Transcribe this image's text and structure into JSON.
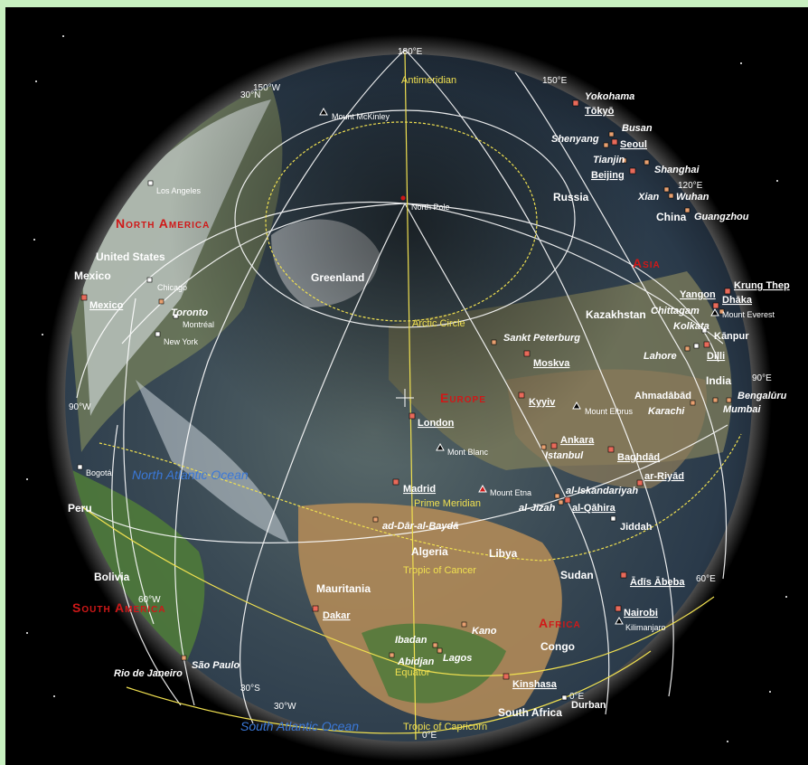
{
  "map": {
    "continents": [
      "North America",
      "Asia",
      "Europe",
      "South America",
      "Africa"
    ],
    "oceans": [
      "North Atlantic Ocean",
      "South Atlantic Ocean"
    ],
    "countries": [
      "Greenland",
      "Russia",
      "United States",
      "Mexico",
      "China",
      "Kazakhstan",
      "India",
      "Algeria",
      "Libya",
      "Sudan",
      "Mauritania",
      "Congo",
      "South Africa",
      "Peru",
      "Bolivia"
    ],
    "capitals": [
      "Tōkyō",
      "Seoul",
      "Beijing",
      "Moskva",
      "Kyyiv",
      "London",
      "Madrid",
      "Ankara",
      "Baghdād",
      "ar-Riyād",
      "al-Qāhira",
      "Ādīs Ābeba",
      "Nairobi",
      "Kinshasa",
      "Dakar",
      "Mexico",
      "Krung Thep",
      "Dhāka",
      "Dilli"
    ],
    "cities": [
      "Yokohama",
      "Busan",
      "Shenyang",
      "Tianjin",
      "Shanghai",
      "Xian",
      "Wuhan",
      "Guangzhou",
      "Los Angeles",
      "Chicago",
      "Toronto",
      "Montréal",
      "New York",
      "Sankt Peterburg",
      "Yangon",
      "Chittagam",
      "Kolkata",
      "Kānpur",
      "Lahore",
      "Ahmadābād",
      "Karachi",
      "Bengalūru",
      "Mumbai",
      "Istanbul",
      "al-Iskandariyah",
      "al-Jīzah",
      "Jiddah",
      "ad-Dār-al-Baydā",
      "Kano",
      "Ibadan",
      "Lagos",
      "Abidjan",
      "Bogotá",
      "Rio de Janeiro",
      "São Paulo",
      "Durban"
    ],
    "mountains": [
      "Mount McKinley",
      "Mount Everest",
      "Mount Elbrus",
      "Mont Blanc",
      "Mount Etna",
      "Kilimanjaro"
    ],
    "lines": [
      "Antimeridian",
      "North Pole",
      "Arctic Circle",
      "Prime Meridian",
      "Tropic of Cancer",
      "Equator",
      "Tropic of Capricorn"
    ],
    "coords": [
      "180°E",
      "150°E",
      "150°W",
      "30°N",
      "120°E",
      "90°E",
      "90°W",
      "60°E",
      "60°W",
      "30°S",
      "30°W",
      "0°E",
      "0°E"
    ],
    "colors": {
      "capital_marker": "#e86a5a",
      "city_marker": "#e8a070",
      "us_marker": "#ffffff",
      "continent": "#d01818",
      "guide_line": "#f0e050",
      "ocean": "#3a78d8"
    }
  }
}
